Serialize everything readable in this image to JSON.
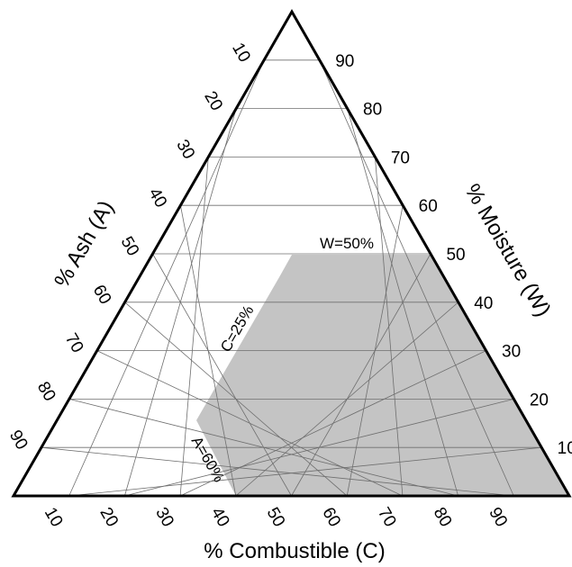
{
  "axes": {
    "bottom": {
      "title": "% Combustible (C)",
      "ticks": [
        "10",
        "20",
        "30",
        "40",
        "50",
        "60",
        "70",
        "80",
        "90"
      ]
    },
    "left": {
      "title": "% Ash (A)",
      "ticks": [
        "10",
        "20",
        "30",
        "40",
        "50",
        "60",
        "70",
        "80",
        "90"
      ]
    },
    "right": {
      "title": "% Moisture (W)",
      "ticks": [
        "90",
        "80",
        "70",
        "60",
        "50",
        "40",
        "30",
        "20",
        "10"
      ]
    }
  },
  "region": {
    "description_labels": {
      "moisture_limit": "W=50%",
      "combustible_limit": "C=25%",
      "ash_limit": "A=60%"
    },
    "constraints": {
      "W_max": 50,
      "C_min": 25,
      "A_max": 60
    },
    "fill": "#c4c4c4"
  },
  "grid_step": 10,
  "colors": {
    "outline": "#000000",
    "grid": "#6f6f6f"
  }
}
